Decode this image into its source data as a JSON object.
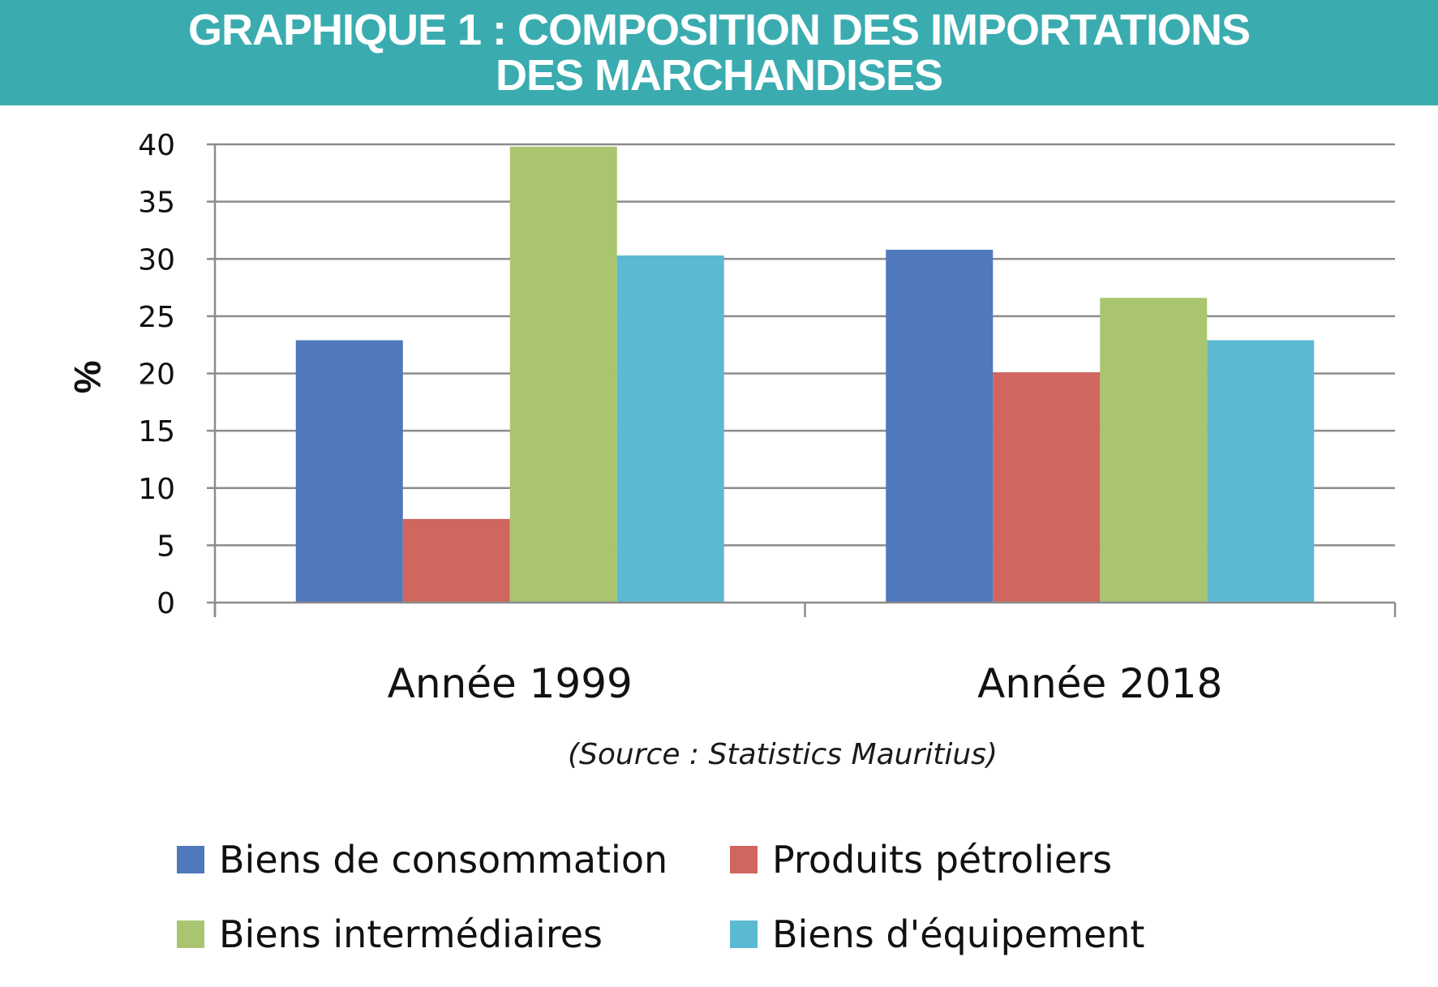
{
  "header": {
    "title_line1": "GRAPHIQUE 1 : COMPOSITION DES IMPORTATIONS",
    "title_line2": "DES MARCHANDISES",
    "background_color": "#3aacb0"
  },
  "source_note": "(Source : Statistics Mauritius)",
  "chart_data": {
    "type": "bar",
    "title": "GRAPHIQUE 1 : COMPOSITION DES IMPORTATIONS DES MARCHANDISES",
    "xlabel": "",
    "ylabel": "%",
    "ylim": [
      0,
      40
    ],
    "yticks": [
      "0",
      "5",
      "10",
      "15",
      "20",
      "25",
      "30",
      "35",
      "40"
    ],
    "grid": true,
    "legend_position": "bottom",
    "categories": [
      "Année 1999",
      "Année 2018"
    ],
    "series": [
      {
        "name": "Biens de consommation",
        "color": "#5078bc",
        "values": [
          22.9,
          30.8
        ]
      },
      {
        "name": "Produits pétroliers",
        "color": "#d0665f",
        "values": [
          7.3,
          20.1
        ]
      },
      {
        "name": "Biens intermédiaires",
        "color": "#a9c56f",
        "values": [
          39.8,
          26.6
        ]
      },
      {
        "name": "Biens d'équipement",
        "color": "#5bbad2",
        "values": [
          30.3,
          22.9
        ]
      }
    ]
  }
}
